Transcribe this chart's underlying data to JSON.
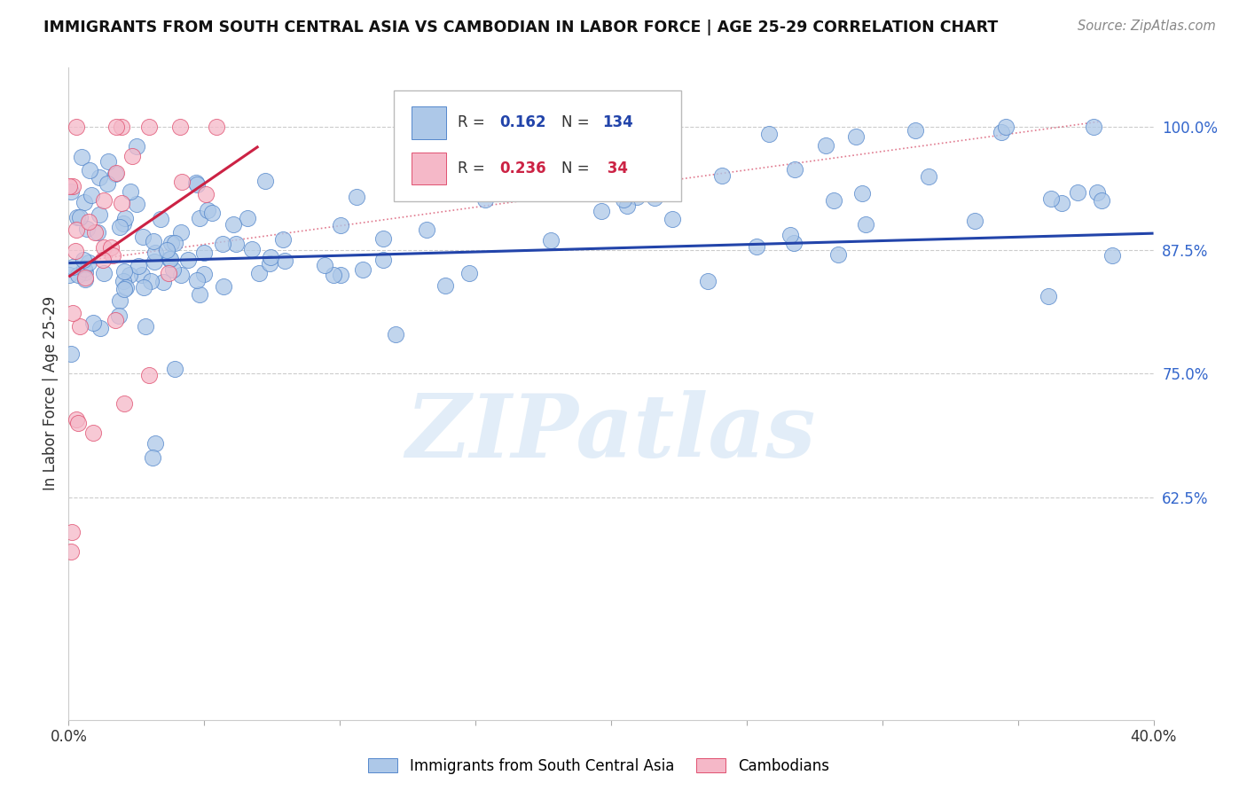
{
  "title": "IMMIGRANTS FROM SOUTH CENTRAL ASIA VS CAMBODIAN IN LABOR FORCE | AGE 25-29 CORRELATION CHART",
  "source": "Source: ZipAtlas.com",
  "ylabel": "In Labor Force | Age 25-29",
  "xlim": [
    0.0,
    0.4
  ],
  "ylim": [
    0.4,
    1.06
  ],
  "xtick_positions": [
    0.0,
    0.05,
    0.1,
    0.15,
    0.2,
    0.25,
    0.3,
    0.35,
    0.4
  ],
  "xticklabels": [
    "0.0%",
    "",
    "",
    "",
    "",
    "",
    "",
    "",
    "40.0%"
  ],
  "ytick_positions": [
    0.625,
    0.75,
    0.875,
    1.0
  ],
  "ytick_labels": [
    "62.5%",
    "75.0%",
    "87.5%",
    "100.0%"
  ],
  "blue_R": "0.162",
  "blue_N": "134",
  "pink_R": "0.236",
  "pink_N": " 34",
  "blue_color": "#adc8e8",
  "pink_color": "#f5b8c8",
  "blue_edge_color": "#5588cc",
  "pink_edge_color": "#e05070",
  "blue_line_color": "#2244aa",
  "pink_line_color": "#cc2244",
  "blue_label": "Immigrants from South Central Asia",
  "pink_label": "Cambodians",
  "watermark": "ZIPatlas",
  "watermark_color": "#b8d4ee",
  "background_color": "#ffffff",
  "legend_R_label_color": "#333333",
  "legend_N_label_color": "#333333",
  "source_color": "#888888",
  "ytick_color": "#3366cc",
  "xtick_color": "#333333",
  "grid_color": "#cccccc",
  "title_color": "#111111",
  "ylabel_color": "#333333"
}
